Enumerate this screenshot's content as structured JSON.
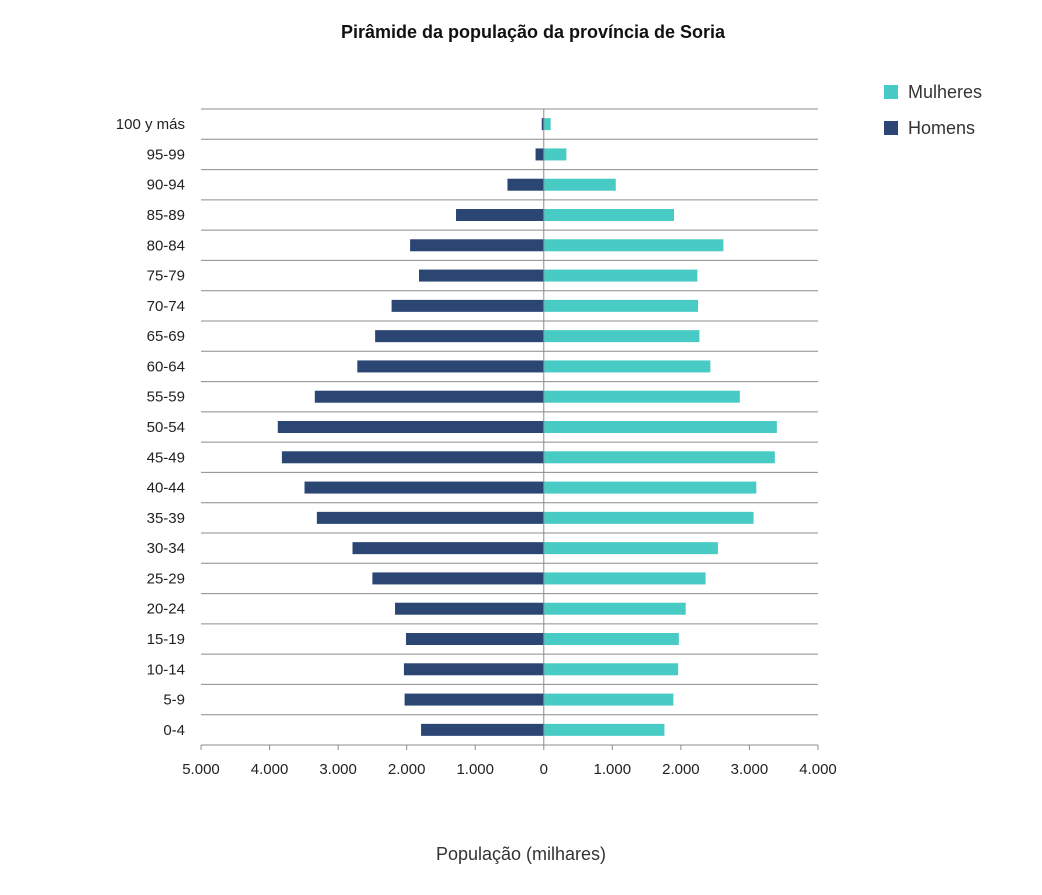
{
  "chart_data": {
    "type": "bar",
    "orientation": "horizontal",
    "title": "Pirâmide da população da província de Soria",
    "xlabel": "População (milhares)",
    "ylabel": "",
    "xlim": [
      -5000,
      4000
    ],
    "x_ticks": [
      -5000,
      -4000,
      -3000,
      -2000,
      -1000,
      0,
      1000,
      2000,
      3000,
      4000
    ],
    "x_tick_labels": [
      "5.000",
      "4.000",
      "3.000",
      "2.000",
      "1.000",
      "0",
      "1.000",
      "2.000",
      "3.000",
      "4.000"
    ],
    "categories": [
      "100 y más",
      "95-99",
      "90-94",
      "85-89",
      "80-84",
      "75-79",
      "70-74",
      "65-69",
      "60-64",
      "55-59",
      "50-54",
      "45-49",
      "40-44",
      "35-39",
      "30-34",
      "25-29",
      "20-24",
      "15-19",
      "10-14",
      "5-9",
      "0-4"
    ],
    "series": [
      {
        "name": "Mulheres",
        "color": "#48cbc4",
        "values": [
          100,
          330,
          1050,
          1900,
          2620,
          2240,
          2250,
          2270,
          2430,
          2860,
          3400,
          3370,
          3100,
          3060,
          2540,
          2360,
          2070,
          1970,
          1960,
          1890,
          1760
        ]
      },
      {
        "name": "Homens",
        "color": "#2b4673",
        "values": [
          -30,
          -120,
          -530,
          -1280,
          -1950,
          -1820,
          -2220,
          -2460,
          -2720,
          -3340,
          -3880,
          -3820,
          -3490,
          -3310,
          -2790,
          -2500,
          -2170,
          -2010,
          -2040,
          -2030,
          -1790
        ]
      }
    ],
    "legend": "top-right",
    "grid": true
  }
}
